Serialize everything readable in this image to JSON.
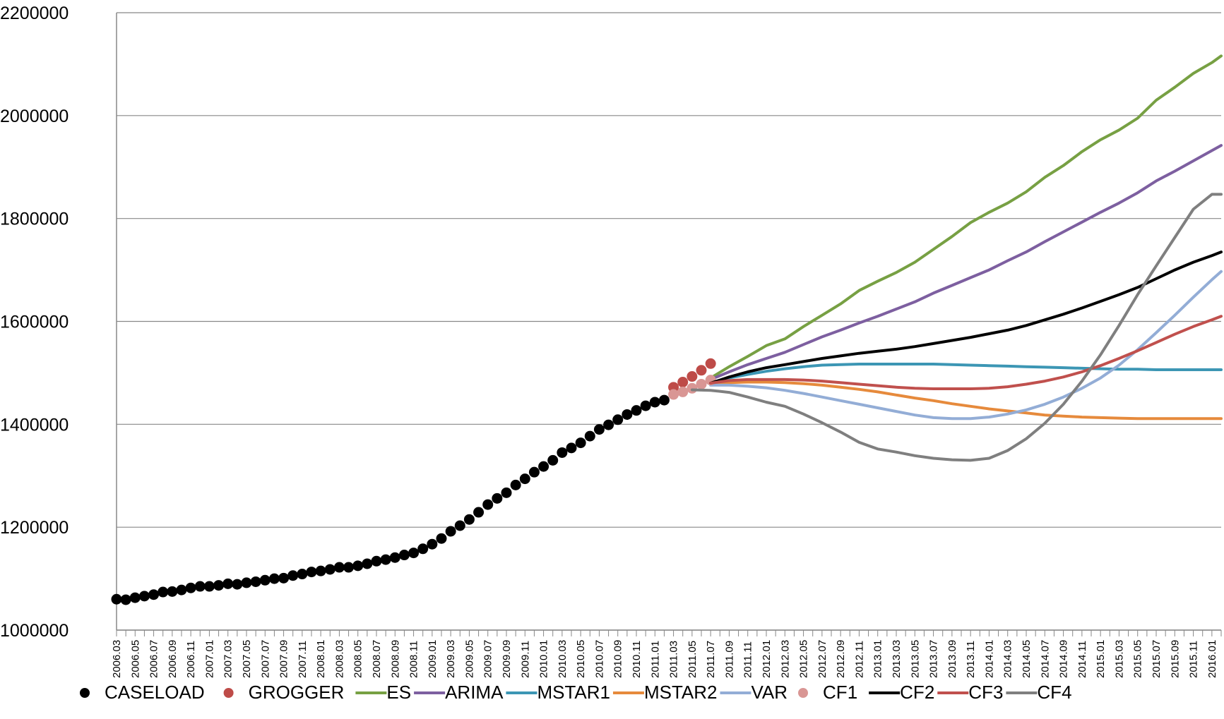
{
  "chart_data": {
    "type": "line",
    "ylim": [
      1000000,
      2200000
    ],
    "y_ticks": [
      "1000000",
      "1200000",
      "1400000",
      "1600000",
      "1800000",
      "2000000",
      "2200000"
    ],
    "x_start": "2006.03",
    "x_end": "2016.02",
    "x_tick_labels": [
      "2006.03",
      "2006.05",
      "2006.07",
      "2006.09",
      "2006.11",
      "2007.01",
      "2007.03",
      "2007.05",
      "2007.07",
      "2007.09",
      "2007.11",
      "2008.01",
      "2008.03",
      "2008.05",
      "2008.07",
      "2008.09",
      "2008.11",
      "2009.01",
      "2009.03",
      "2009.05",
      "2009.07",
      "2009.09",
      "2009.11",
      "2010.01",
      "2010.03",
      "2010.05",
      "2010.07",
      "2010.09",
      "2010.11",
      "2011.01",
      "2011.03",
      "2011.05",
      "2011.07",
      "2011.09",
      "2011.11",
      "2012.01",
      "2012.03",
      "2012.05",
      "2012.07",
      "2012.09",
      "2012.11",
      "2013.01",
      "2013.03",
      "2013.05",
      "2013.07",
      "2013.09",
      "2013.11",
      "2014.01",
      "2014.03",
      "2014.05",
      "2014.07",
      "2014.09",
      "2014.11",
      "2015.01",
      "2015.03",
      "2015.05",
      "2015.07",
      "2015.09",
      "2015.11",
      "2016.01"
    ],
    "grid": "horizontal",
    "legend_position": "bottom",
    "series": [
      {
        "name": "CASELOAD",
        "style": "markers",
        "color": "#000000",
        "x": [
          "2006.03",
          "2006.04",
          "2006.05",
          "2006.06",
          "2006.07",
          "2006.08",
          "2006.09",
          "2006.10",
          "2006.11",
          "2006.12",
          "2007.01",
          "2007.02",
          "2007.03",
          "2007.04",
          "2007.05",
          "2007.06",
          "2007.07",
          "2007.08",
          "2007.09",
          "2007.10",
          "2007.11",
          "2007.12",
          "2008.01",
          "2008.02",
          "2008.03",
          "2008.04",
          "2008.05",
          "2008.06",
          "2008.07",
          "2008.08",
          "2008.09",
          "2008.10",
          "2008.11",
          "2008.12",
          "2009.01",
          "2009.02",
          "2009.03",
          "2009.04",
          "2009.05",
          "2009.06",
          "2009.07",
          "2009.08",
          "2009.09",
          "2009.10",
          "2009.11",
          "2009.12",
          "2010.01",
          "2010.02",
          "2010.03",
          "2010.04",
          "2010.05",
          "2010.06",
          "2010.07",
          "2010.08",
          "2010.09",
          "2010.10",
          "2010.11",
          "2010.12",
          "2011.01",
          "2011.02"
        ],
        "y": [
          1060000,
          1059000,
          1063000,
          1066000,
          1069000,
          1074000,
          1075000,
          1078000,
          1082000,
          1085000,
          1085000,
          1087000,
          1090000,
          1089000,
          1092000,
          1094000,
          1097000,
          1100000,
          1101000,
          1106000,
          1109000,
          1113000,
          1115000,
          1118000,
          1122000,
          1122000,
          1125000,
          1129000,
          1134000,
          1137000,
          1141000,
          1146000,
          1150000,
          1158000,
          1167000,
          1178000,
          1192000,
          1203000,
          1215000,
          1229000,
          1244000,
          1256000,
          1267000,
          1282000,
          1294000,
          1307000,
          1318000,
          1330000,
          1345000,
          1354000,
          1364000,
          1377000,
          1390000,
          1399000,
          1409000,
          1419000,
          1427000,
          1436000,
          1443000,
          1447000
        ]
      },
      {
        "name": "GROGGER",
        "style": "markers",
        "color": "#BE4B48",
        "x": [
          "2011.03",
          "2011.04",
          "2011.05",
          "2011.06",
          "2011.07"
        ],
        "y": [
          1472000,
          1482000,
          1493000,
          1505000,
          1518000
        ]
      },
      {
        "name": "ES",
        "style": "line",
        "color": "#77A043",
        "x": [
          "2011.07",
          "2011.09",
          "2011.11",
          "2012.01",
          "2012.03",
          "2012.05",
          "2012.07",
          "2012.09",
          "2012.11",
          "2013.01",
          "2013.03",
          "2013.05",
          "2013.07",
          "2013.09",
          "2013.11",
          "2014.01",
          "2014.03",
          "2014.05",
          "2014.07",
          "2014.09",
          "2014.11",
          "2015.01",
          "2015.03",
          "2015.05",
          "2015.07",
          "2015.09",
          "2015.11",
          "2016.01",
          "2016.02"
        ],
        "y": [
          1490000,
          1512000,
          1532000,
          1553000,
          1566000,
          1590000,
          1612000,
          1634000,
          1660000,
          1678000,
          1695000,
          1715000,
          1740000,
          1765000,
          1792000,
          1812000,
          1830000,
          1852000,
          1880000,
          1903000,
          1930000,
          1953000,
          1972000,
          1995000,
          2030000,
          2055000,
          2082000,
          2103000,
          2116000
        ]
      },
      {
        "name": "ARIMA",
        "style": "line",
        "color": "#7D5FA0",
        "x": [
          "2011.07",
          "2011.09",
          "2011.11",
          "2012.01",
          "2012.03",
          "2012.05",
          "2012.07",
          "2012.09",
          "2012.11",
          "2013.01",
          "2013.03",
          "2013.05",
          "2013.07",
          "2013.09",
          "2013.11",
          "2014.01",
          "2014.03",
          "2014.05",
          "2014.07",
          "2014.09",
          "2014.11",
          "2015.01",
          "2015.03",
          "2015.05",
          "2015.07",
          "2015.09",
          "2015.11",
          "2016.01",
          "2016.02"
        ],
        "y": [
          1487000,
          1502000,
          1516000,
          1528000,
          1540000,
          1555000,
          1570000,
          1583000,
          1597000,
          1610000,
          1624000,
          1638000,
          1655000,
          1670000,
          1685000,
          1700000,
          1718000,
          1735000,
          1755000,
          1774000,
          1793000,
          1812000,
          1830000,
          1850000,
          1873000,
          1892000,
          1912000,
          1932000,
          1942000
        ]
      },
      {
        "name": "MSTAR1",
        "style": "line",
        "color": "#3C96B4",
        "x": [
          "2011.07",
          "2011.09",
          "2011.11",
          "2012.01",
          "2012.03",
          "2012.05",
          "2012.07",
          "2012.09",
          "2012.11",
          "2013.01",
          "2013.03",
          "2013.05",
          "2013.07",
          "2013.09",
          "2013.11",
          "2014.01",
          "2014.03",
          "2014.05",
          "2014.07",
          "2014.09",
          "2014.11",
          "2015.01",
          "2015.03",
          "2015.05",
          "2015.07",
          "2015.09",
          "2015.11",
          "2016.01",
          "2016.02"
        ],
        "y": [
          1480000,
          1490000,
          1497000,
          1503000,
          1508000,
          1512000,
          1515000,
          1516000,
          1517000,
          1517000,
          1517000,
          1517000,
          1517000,
          1516000,
          1515000,
          1514000,
          1513000,
          1512000,
          1511000,
          1510000,
          1509000,
          1508000,
          1507000,
          1507000,
          1506000,
          1506000,
          1506000,
          1506000,
          1506000
        ]
      },
      {
        "name": "MSTAR2",
        "style": "line",
        "color": "#E68A3C",
        "x": [
          "2011.07",
          "2011.09",
          "2011.11",
          "2012.01",
          "2012.03",
          "2012.05",
          "2012.07",
          "2012.09",
          "2012.11",
          "2013.01",
          "2013.03",
          "2013.05",
          "2013.07",
          "2013.09",
          "2013.11",
          "2014.01",
          "2014.03",
          "2014.05",
          "2014.07",
          "2014.09",
          "2014.11",
          "2015.01",
          "2015.03",
          "2015.05",
          "2015.07",
          "2015.09",
          "2015.11",
          "2016.01",
          "2016.02"
        ],
        "y": [
          1478000,
          1481000,
          1482000,
          1482000,
          1481000,
          1479000,
          1476000,
          1472000,
          1468000,
          1463000,
          1457000,
          1451000,
          1446000,
          1440000,
          1435000,
          1430000,
          1426000,
          1422000,
          1418000,
          1416000,
          1414000,
          1413000,
          1412000,
          1411000,
          1411000,
          1411000,
          1411000,
          1411000,
          1411000
        ]
      },
      {
        "name": "VAR",
        "style": "line",
        "color": "#93ADD6",
        "x": [
          "2011.07",
          "2011.09",
          "2011.11",
          "2012.01",
          "2012.03",
          "2012.05",
          "2012.07",
          "2012.09",
          "2012.11",
          "2013.01",
          "2013.03",
          "2013.05",
          "2013.07",
          "2013.09",
          "2013.11",
          "2014.01",
          "2014.03",
          "2014.05",
          "2014.07",
          "2014.09",
          "2014.11",
          "2015.01",
          "2015.03",
          "2015.05",
          "2015.07",
          "2015.09",
          "2015.11",
          "2016.01",
          "2016.02"
        ],
        "y": [
          1476000,
          1476000,
          1474000,
          1471000,
          1466000,
          1460000,
          1453000,
          1446000,
          1439000,
          1432000,
          1425000,
          1418000,
          1413000,
          1411000,
          1411000,
          1414000,
          1420000,
          1428000,
          1439000,
          1453000,
          1470000,
          1490000,
          1515000,
          1545000,
          1578000,
          1612000,
          1647000,
          1681000,
          1697000
        ]
      },
      {
        "name": "CF1",
        "style": "markers",
        "color": "#D99694",
        "x": [
          "2011.03",
          "2011.04",
          "2011.05",
          "2011.06",
          "2011.07"
        ],
        "y": [
          1458000,
          1463000,
          1470000,
          1478000,
          1486000
        ]
      },
      {
        "name": "CF2",
        "style": "line",
        "color": "#000000",
        "x": [
          "2011.07",
          "2011.09",
          "2011.11",
          "2012.01",
          "2012.03",
          "2012.05",
          "2012.07",
          "2012.09",
          "2012.11",
          "2013.01",
          "2013.03",
          "2013.05",
          "2013.07",
          "2013.09",
          "2013.11",
          "2014.01",
          "2014.03",
          "2014.05",
          "2014.07",
          "2014.09",
          "2014.11",
          "2015.01",
          "2015.03",
          "2015.05",
          "2015.07",
          "2015.09",
          "2015.11",
          "2016.01",
          "2016.02"
        ],
        "y": [
          1480000,
          1492000,
          1502000,
          1510000,
          1516000,
          1522000,
          1528000,
          1533000,
          1538000,
          1542000,
          1546000,
          1551000,
          1557000,
          1563000,
          1569000,
          1576000,
          1583000,
          1592000,
          1603000,
          1614000,
          1626000,
          1639000,
          1652000,
          1666000,
          1683000,
          1700000,
          1715000,
          1728000,
          1735000
        ]
      },
      {
        "name": "CF3",
        "style": "line",
        "color": "#C0504D",
        "x": [
          "2011.07",
          "2011.09",
          "2011.11",
          "2012.01",
          "2012.03",
          "2012.05",
          "2012.07",
          "2012.09",
          "2012.11",
          "2013.01",
          "2013.03",
          "2013.05",
          "2013.07",
          "2013.09",
          "2013.11",
          "2014.01",
          "2014.03",
          "2014.05",
          "2014.07",
          "2014.09",
          "2014.11",
          "2015.01",
          "2015.03",
          "2015.05",
          "2015.07",
          "2015.09",
          "2015.11",
          "2016.01",
          "2016.02"
        ],
        "y": [
          1480000,
          1485000,
          1487000,
          1487000,
          1487000,
          1486000,
          1484000,
          1481000,
          1478000,
          1475000,
          1472000,
          1470000,
          1469000,
          1469000,
          1469000,
          1470000,
          1473000,
          1478000,
          1484000,
          1492000,
          1502000,
          1514000,
          1528000,
          1543000,
          1559000,
          1575000,
          1590000,
          1603000,
          1610000
        ]
      },
      {
        "name": "CF4",
        "style": "line",
        "color": "#7F7F7F",
        "x": [
          "2011.05",
          "2011.07",
          "2011.09",
          "2011.11",
          "2012.01",
          "2012.03",
          "2012.05",
          "2012.07",
          "2012.09",
          "2012.11",
          "2013.01",
          "2013.03",
          "2013.05",
          "2013.07",
          "2013.09",
          "2013.11",
          "2014.01",
          "2014.03",
          "2014.05",
          "2014.07",
          "2014.09",
          "2014.11",
          "2015.01",
          "2015.03",
          "2015.05",
          "2015.07",
          "2015.09",
          "2015.11",
          "2016.01",
          "2016.02"
        ],
        "y": [
          1467000,
          1466000,
          1462000,
          1453000,
          1443000,
          1435000,
          1420000,
          1403000,
          1385000,
          1365000,
          1352000,
          1346000,
          1339000,
          1334000,
          1331000,
          1330000,
          1334000,
          1349000,
          1372000,
          1402000,
          1439000,
          1484000,
          1535000,
          1592000,
          1652000,
          1708000,
          1763000,
          1818000,
          1847000,
          1847000
        ]
      }
    ]
  }
}
